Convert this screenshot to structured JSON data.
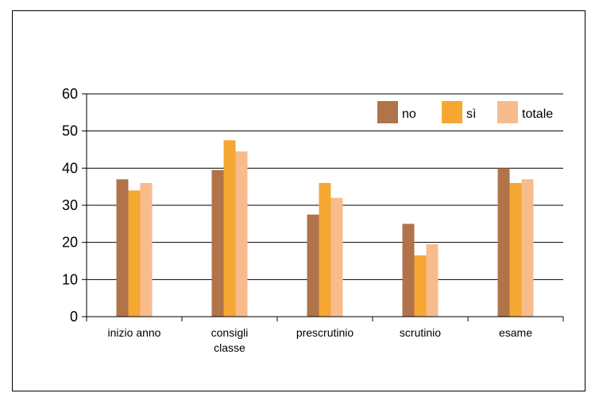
{
  "chart_data": {
    "type": "bar",
    "categories": [
      [
        "inizio anno"
      ],
      [
        "consigli",
        "classe"
      ],
      [
        "prescrutinio"
      ],
      [
        "scrutinio"
      ],
      [
        "esame"
      ]
    ],
    "series": [
      {
        "name": "no",
        "values": [
          37,
          39.5,
          27.5,
          25,
          40
        ]
      },
      {
        "name": "sì",
        "values": [
          34,
          47.5,
          36,
          16.5,
          36
        ]
      },
      {
        "name": "totale",
        "values": [
          36,
          44.5,
          32,
          19.5,
          37
        ]
      }
    ],
    "series_colors": [
      "#B0734A",
      "#F5A733",
      "#F8BB8C"
    ],
    "ylim": [
      0,
      60
    ],
    "yticks": [
      0,
      10,
      20,
      30,
      40,
      50,
      60
    ],
    "grid": true,
    "legend_position": "top-right"
  }
}
